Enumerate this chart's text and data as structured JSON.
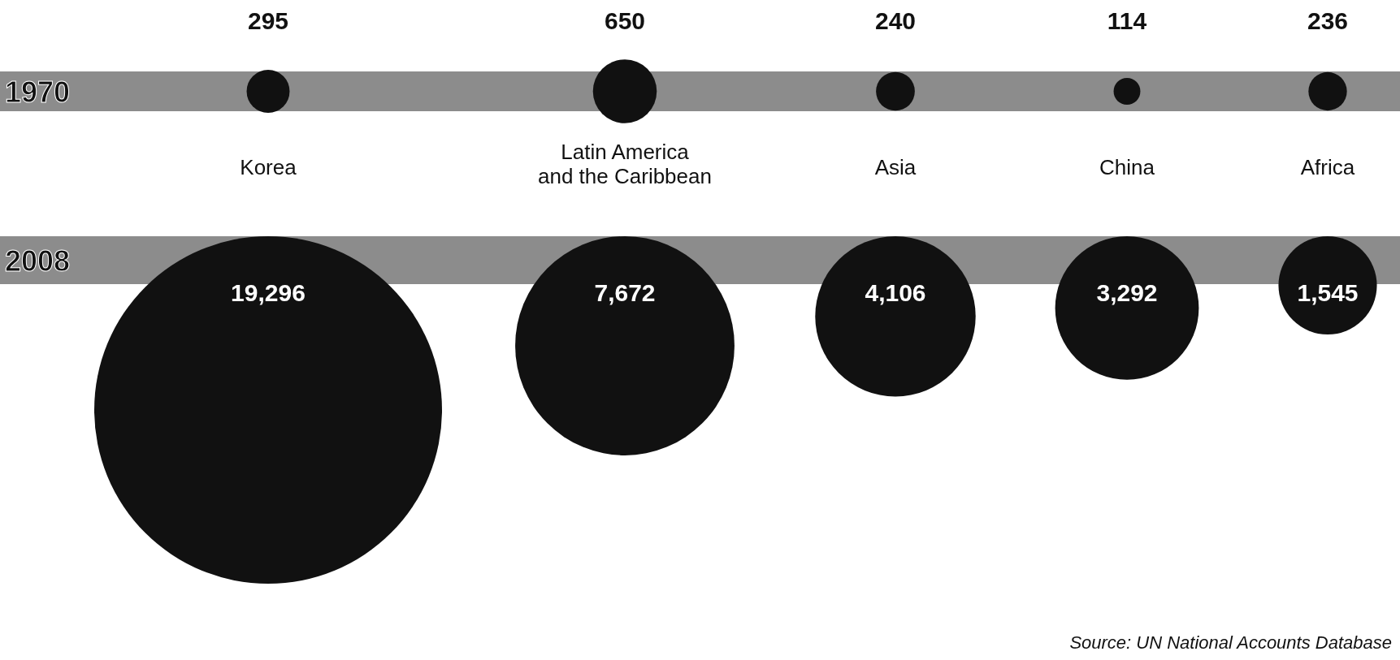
{
  "chart_data": {
    "type": "other",
    "categories": [
      "Korea",
      "Latin America and the Caribbean",
      "Asia",
      "China",
      "Africa"
    ],
    "series": [
      {
        "name": "1970",
        "color": "#111111",
        "values": [
          295,
          650,
          240,
          114,
          236
        ]
      },
      {
        "name": "2008",
        "color": "#111111",
        "values": [
          19296,
          7672,
          4106,
          3292,
          1545
        ],
        "value_labels": [
          "19,296",
          "7,672",
          "4,106",
          "3,292",
          "1,545"
        ]
      }
    ],
    "data_labels": true,
    "annotations": [
      "Source: UN National Accounts Database"
    ]
  }
}
